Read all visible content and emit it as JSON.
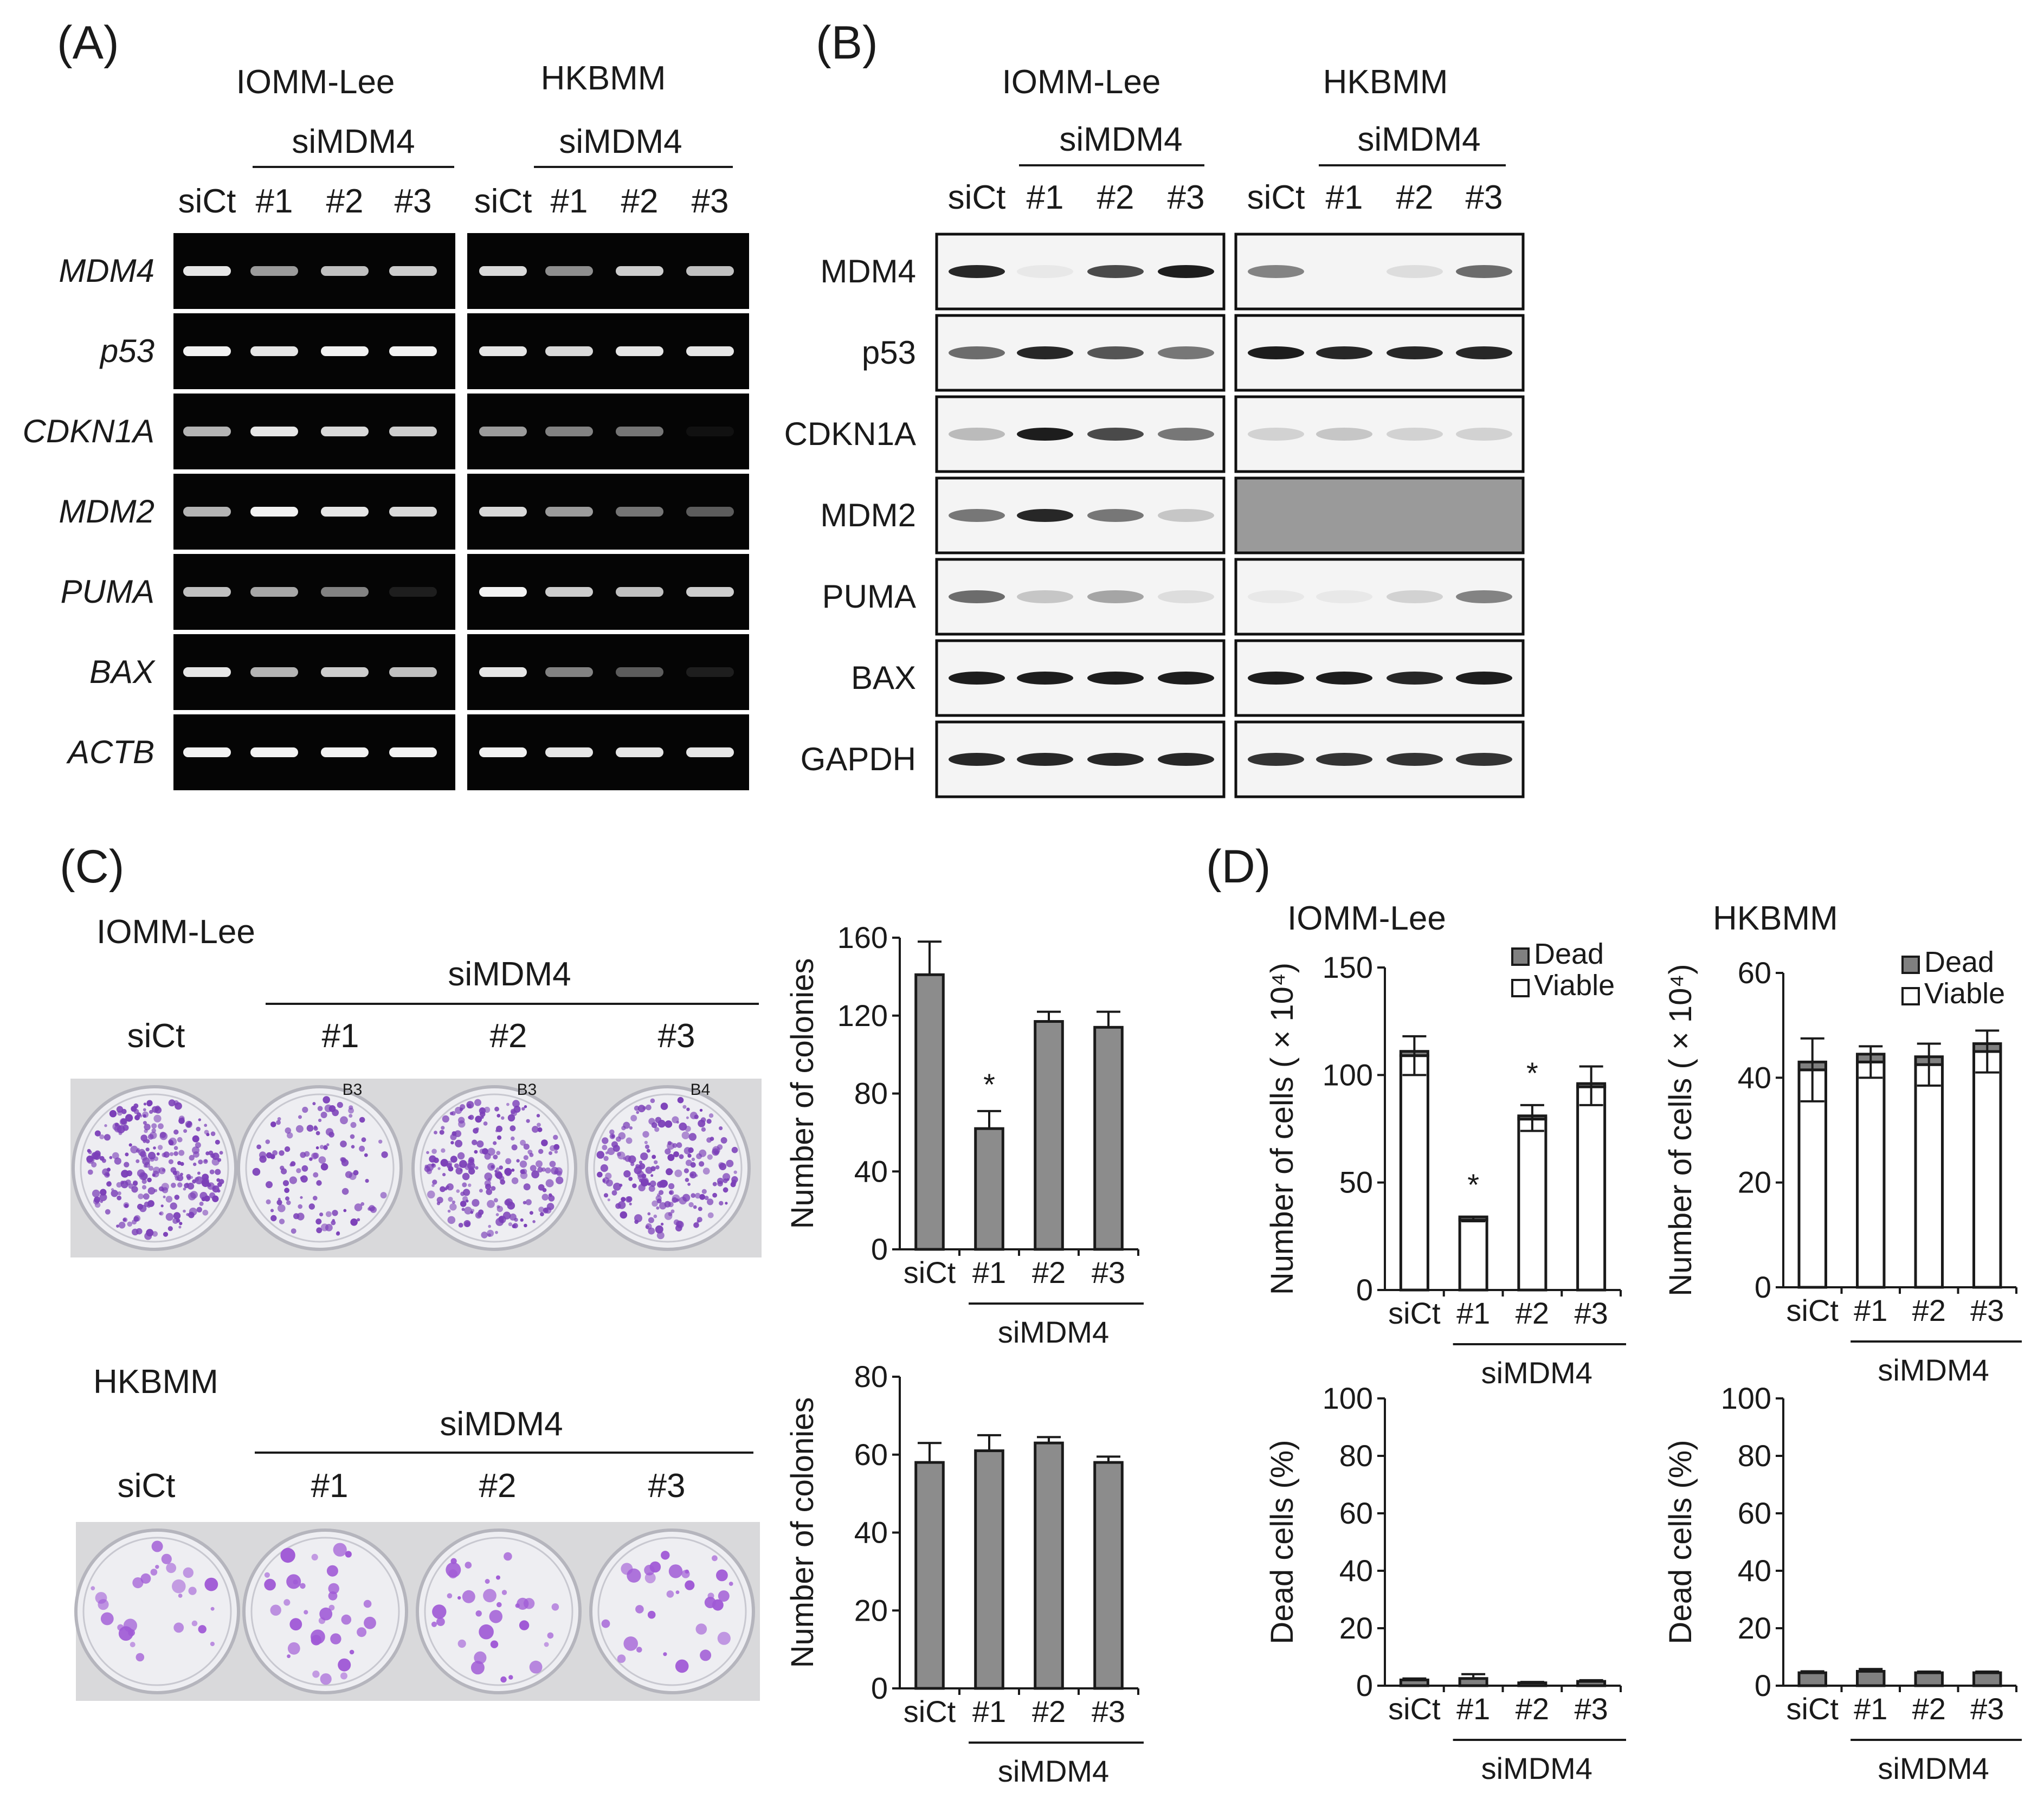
{
  "panels": {
    "A": {
      "label": "(A)",
      "cell_lines": [
        "IOMM-Lee",
        "HKBMM"
      ],
      "group_label": "siMDM4",
      "lanes": [
        "siCt",
        "#1",
        "#2",
        "#3"
      ],
      "genes": [
        "MDM4",
        "p53",
        "CDKN1A",
        "MDM2",
        "PUMA",
        "BAX",
        "ACTB"
      ],
      "band_intensity": {
        "IOMM-Lee": [
          [
            0.9,
            0.6,
            0.75,
            0.8
          ],
          [
            0.95,
            0.9,
            0.95,
            0.95
          ],
          [
            0.7,
            0.9,
            0.85,
            0.8
          ],
          [
            0.7,
            0.95,
            0.9,
            0.85
          ],
          [
            0.75,
            0.65,
            0.5,
            0.1
          ],
          [
            0.9,
            0.7,
            0.8,
            0.75
          ],
          [
            0.95,
            0.95,
            0.95,
            0.95
          ]
        ],
        "HKBMM": [
          [
            0.85,
            0.55,
            0.8,
            0.75
          ],
          [
            0.9,
            0.85,
            0.9,
            0.9
          ],
          [
            0.6,
            0.5,
            0.45,
            0.05
          ],
          [
            0.85,
            0.6,
            0.45,
            0.35
          ],
          [
            0.95,
            0.8,
            0.75,
            0.8
          ],
          [
            0.9,
            0.5,
            0.35,
            0.1
          ],
          [
            0.95,
            0.9,
            0.9,
            0.9
          ]
        ]
      }
    },
    "B": {
      "label": "(B)",
      "cell_lines": [
        "IOMM-Lee",
        "HKBMM"
      ],
      "group_label": "siMDM4",
      "lanes": [
        "siCt",
        "#1",
        "#2",
        "#3"
      ],
      "proteins": [
        "MDM4",
        "p53",
        "CDKN1A",
        "MDM2",
        "PUMA",
        "BAX",
        "GAPDH"
      ],
      "band_intensity": {
        "IOMM-Lee": [
          [
            0.9,
            0.05,
            0.75,
            0.95
          ],
          [
            0.6,
            0.9,
            0.7,
            0.55
          ],
          [
            0.25,
            0.95,
            0.75,
            0.55
          ],
          [
            0.55,
            0.9,
            0.55,
            0.2
          ],
          [
            0.6,
            0.2,
            0.35,
            0.1
          ],
          [
            0.95,
            0.95,
            0.95,
            0.95
          ],
          [
            0.9,
            0.9,
            0.9,
            0.9
          ]
        ],
        "HKBMM": [
          [
            0.5,
            0.0,
            0.1,
            0.6
          ],
          [
            0.95,
            0.9,
            0.9,
            0.9
          ],
          [
            0.15,
            0.2,
            0.15,
            0.15
          ],
          [
            0.0,
            0.0,
            0.0,
            0.0
          ],
          [
            0.05,
            0.05,
            0.15,
            0.5
          ],
          [
            0.95,
            0.95,
            0.9,
            0.95
          ],
          [
            0.85,
            0.85,
            0.85,
            0.85
          ]
        ]
      }
    },
    "C": {
      "label": "(C)",
      "plates": [
        {
          "cell_line": "IOMM-Lee",
          "group_label": "siMDM4",
          "wells": [
            "siCt",
            "#1",
            "#2",
            "#3"
          ],
          "well_marks": [
            "",
            "B3",
            "B3",
            "B4"
          ],
          "density": [
            1.0,
            0.45,
            0.85,
            0.8
          ],
          "colony_color": "#7b3fb8"
        },
        {
          "cell_line": "HKBMM",
          "group_label": "siMDM4",
          "wells": [
            "siCt",
            "#1",
            "#2",
            "#3"
          ],
          "well_marks": [
            "",
            "",
            "",
            ""
          ],
          "density": [
            0.45,
            0.55,
            0.55,
            0.5
          ],
          "colony_color": "#a05ad6"
        }
      ]
    },
    "D": {
      "label": "(D)"
    }
  },
  "chart_data": [
    {
      "panel": "C",
      "type": "bar",
      "title": "",
      "categories": [
        "siCt",
        "#1",
        "#2",
        "#3"
      ],
      "group_label": "siMDM4",
      "ylabel": "Number of colonies",
      "ylim": [
        0,
        160
      ],
      "yticks": [
        0,
        40,
        80,
        120,
        160
      ],
      "values": [
        141,
        62,
        117,
        114
      ],
      "errors": [
        17,
        9,
        5,
        8
      ],
      "significance": [
        "",
        "*",
        "",
        ""
      ],
      "bar_color": "#8c8c8c"
    },
    {
      "panel": "C",
      "type": "bar",
      "title": "",
      "categories": [
        "siCt",
        "#1",
        "#2",
        "#3"
      ],
      "group_label": "siMDM4",
      "ylabel": "Number of colonies",
      "ylim": [
        0,
        80
      ],
      "yticks": [
        0,
        20,
        40,
        60,
        80
      ],
      "values": [
        58,
        61,
        63,
        58
      ],
      "errors": [
        5,
        4,
        1.5,
        1.5
      ],
      "significance": [
        "",
        "",
        "",
        ""
      ],
      "bar_color": "#8c8c8c"
    },
    {
      "panel": "D",
      "type": "bar",
      "title": "IOMM-Lee",
      "categories": [
        "siCt",
        "#1",
        "#2",
        "#3"
      ],
      "group_label": "siMDM4",
      "ylabel": "Number of cells ( × 10⁴)",
      "ylim": [
        0,
        150
      ],
      "yticks": [
        0,
        50,
        100,
        150
      ],
      "stacked": true,
      "legend": "top-right",
      "series": [
        {
          "name": "Viable",
          "values": [
            109,
            33,
            80,
            95
          ],
          "errors": [
            9,
            1,
            6,
            9
          ],
          "color": "#ffffff"
        },
        {
          "name": "Dead",
          "values": [
            2,
            1,
            1,
            1
          ],
          "color": "#808080"
        }
      ],
      "significance": [
        "",
        "*",
        "*",
        ""
      ]
    },
    {
      "panel": "D",
      "type": "bar",
      "title": "HKBMM",
      "categories": [
        "siCt",
        "#1",
        "#2",
        "#3"
      ],
      "group_label": "siMDM4",
      "ylabel": "Number of cells ( × 10⁴)",
      "ylim": [
        0,
        60
      ],
      "yticks": [
        0,
        20,
        40,
        60
      ],
      "stacked": true,
      "legend": "top-right",
      "series": [
        {
          "name": "Viable",
          "values": [
            41.5,
            43,
            42.5,
            45
          ],
          "errors": [
            6,
            3,
            4,
            4
          ],
          "color": "#ffffff"
        },
        {
          "name": "Dead",
          "values": [
            1.5,
            1.5,
            1.5,
            1.5
          ],
          "color": "#808080"
        }
      ],
      "significance": [
        "",
        "",
        "",
        ""
      ]
    },
    {
      "panel": "D",
      "type": "bar",
      "title": "",
      "categories": [
        "siCt",
        "#1",
        "#2",
        "#3"
      ],
      "group_label": "siMDM4",
      "ylabel": "Dead cells (%)",
      "ylim": [
        0,
        100
      ],
      "yticks": [
        0,
        20,
        40,
        60,
        80,
        100
      ],
      "values": [
        2,
        2.5,
        1,
        1.5
      ],
      "errors": [
        0.5,
        1.5,
        0.3,
        0.4
      ],
      "bar_color": "#808080"
    },
    {
      "panel": "D",
      "type": "bar",
      "title": "",
      "categories": [
        "siCt",
        "#1",
        "#2",
        "#3"
      ],
      "group_label": "siMDM4",
      "ylabel": "Dead cells (%)",
      "ylim": [
        0,
        100
      ],
      "yticks": [
        0,
        20,
        40,
        60,
        80,
        100
      ],
      "values": [
        4.5,
        5,
        4.5,
        4.5
      ],
      "errors": [
        0.5,
        0.8,
        0.4,
        0.4
      ],
      "bar_color": "#808080"
    }
  ]
}
